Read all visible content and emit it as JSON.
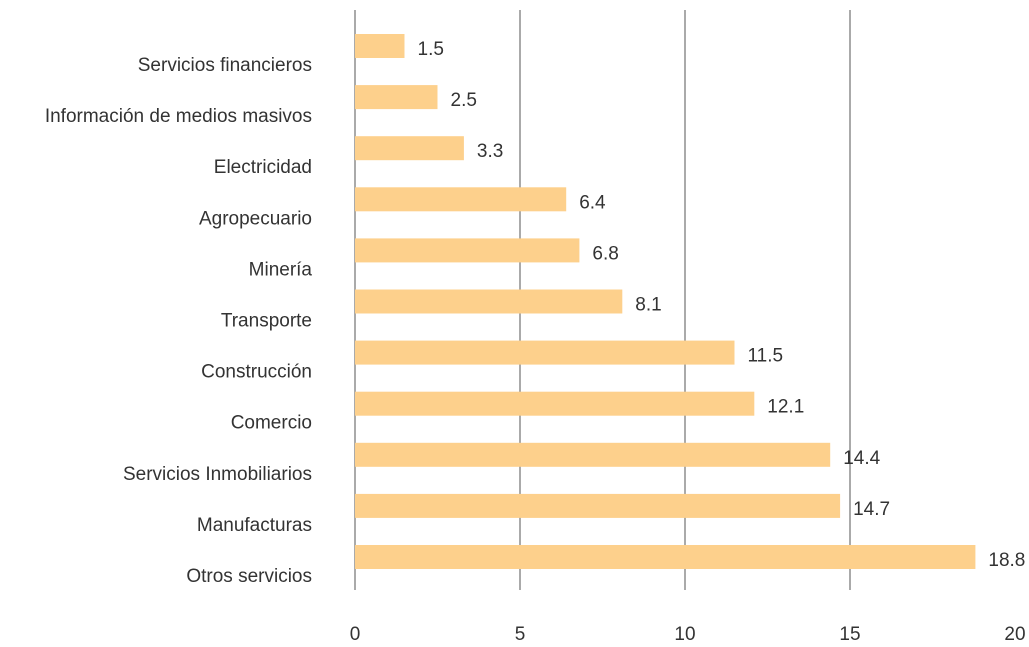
{
  "chart_data": {
    "type": "barh",
    "categories": [
      "Servicios financieros",
      "Información de medios masivos",
      "Electricidad",
      "Agropecuario",
      "Minería",
      "Transporte",
      "Construcción",
      "Comercio",
      "Servicios Inmobiliarios",
      "Manufacturas",
      "Otros servicios"
    ],
    "values": [
      1.5,
      2.5,
      3.3,
      6.4,
      6.8,
      8.1,
      11.5,
      12.1,
      14.4,
      14.7,
      18.8
    ],
    "color": "#fdd08c",
    "xlim": [
      0,
      20
    ],
    "xticks": [
      0,
      5,
      10,
      15,
      20
    ],
    "grid": true
  }
}
